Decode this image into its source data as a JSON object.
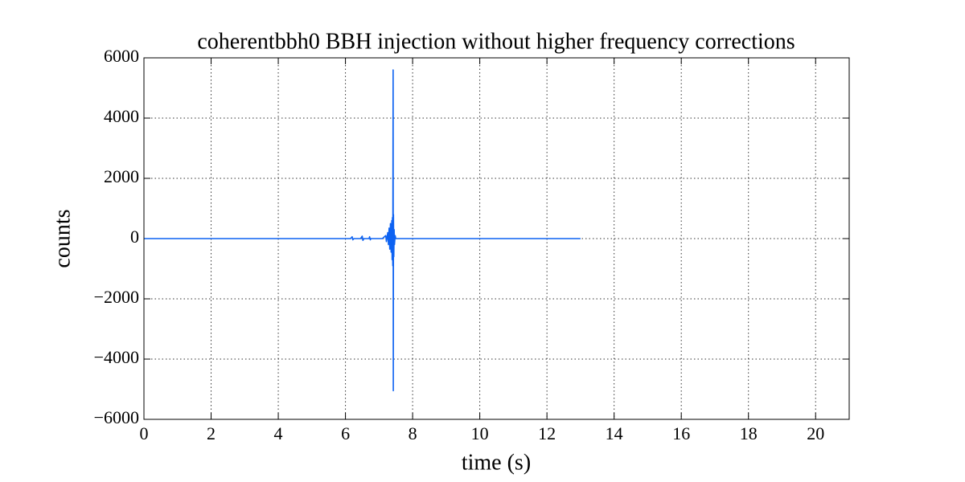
{
  "chart_data": {
    "type": "line",
    "title": "coherentbbh0 BBH injection without higher frequency corrections",
    "xlabel": "time (s)",
    "ylabel": "counts",
    "color": "#0d62f2",
    "grid": true,
    "xlim": [
      0,
      21
    ],
    "ylim": [
      -6000,
      6000
    ],
    "xticks": [
      0,
      2,
      4,
      6,
      8,
      10,
      12,
      14,
      16,
      18,
      20
    ],
    "yticks": [
      {
        "value": -6000,
        "label": "−6000"
      },
      {
        "value": -4000,
        "label": "−4000"
      },
      {
        "value": -2000,
        "label": "−2000"
      },
      0,
      2000,
      4000,
      6000
    ],
    "x": [
      0,
      6.15,
      6.2,
      6.22,
      6.25,
      6.45,
      6.5,
      6.52,
      6.55,
      6.7,
      6.72,
      6.74,
      6.76,
      7.1,
      7.2,
      7.22,
      7.26,
      7.28,
      7.3,
      7.32,
      7.34,
      7.36,
      7.38,
      7.39,
      7.4,
      7.41,
      7.42,
      7.425,
      7.43,
      7.44,
      7.45,
      7.46,
      7.48,
      7.5,
      13.0
    ],
    "values": [
      0,
      0,
      60,
      -40,
      0,
      0,
      80,
      -60,
      0,
      0,
      60,
      -40,
      0,
      0,
      100,
      -100,
      200,
      -200,
      350,
      -350,
      500,
      -450,
      600,
      -700,
      700,
      -900,
      5600,
      -5050,
      800,
      -600,
      300,
      -200,
      100,
      0,
      0
    ]
  }
}
